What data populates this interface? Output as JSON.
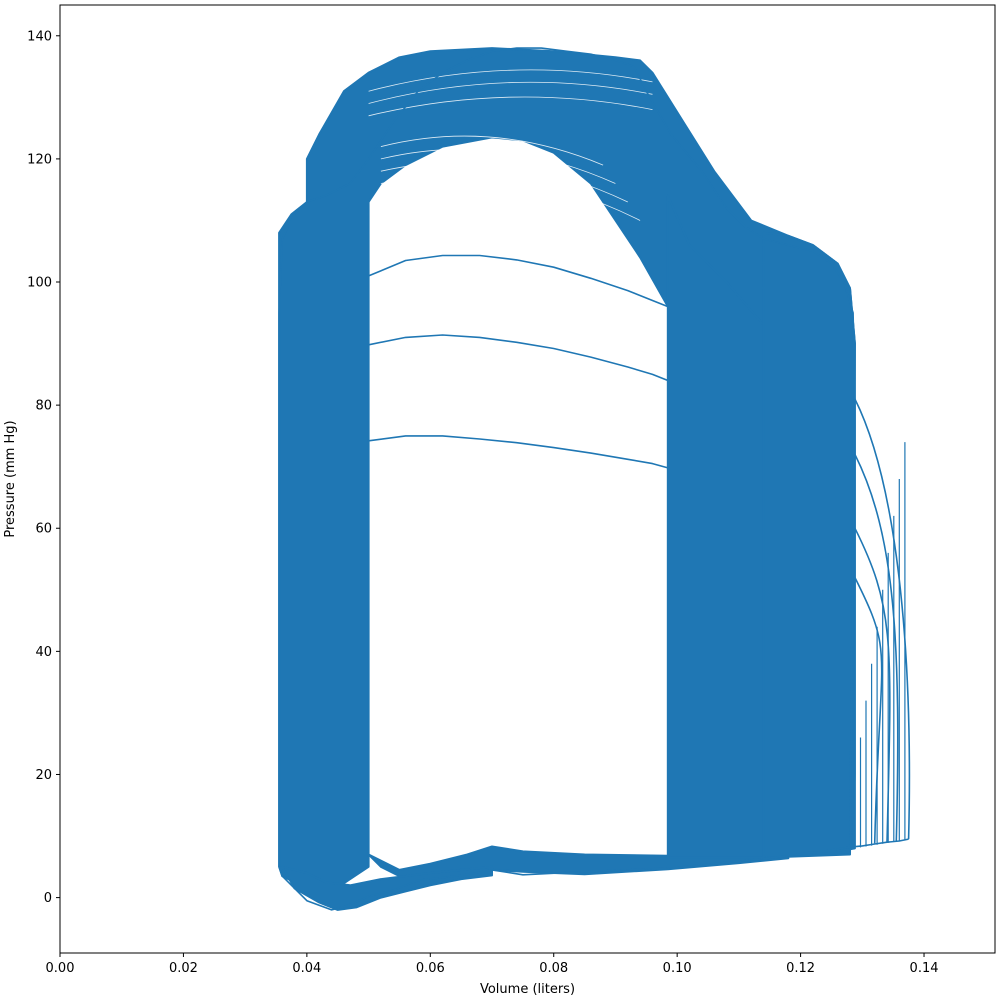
{
  "chart_data": {
    "type": "line",
    "title": "",
    "xlabel": "Volume (liters)",
    "ylabel": "Pressure (mm Hg)",
    "xlim": [
      0.0,
      0.1515
    ],
    "ylim": [
      -9,
      145
    ],
    "x_ticks": [
      0.0,
      0.02,
      0.04,
      0.06,
      0.08,
      0.1,
      0.12,
      0.14
    ],
    "x_tick_labels": [
      "0.00",
      "0.02",
      "0.04",
      "0.06",
      "0.08",
      "0.10",
      "0.12",
      "0.14"
    ],
    "y_ticks": [
      0,
      20,
      40,
      60,
      80,
      100,
      120,
      140
    ],
    "y_tick_labels": [
      "0",
      "20",
      "40",
      "60",
      "80",
      "100",
      "120",
      "140"
    ],
    "grid": false,
    "line_color": "#1f77b4",
    "series": [
      {
        "x": [
          0.1375,
          0.136,
          0.134,
          0.132,
          0.13,
          0.128,
          0.126,
          0.124,
          0.122,
          0.118,
          0.114,
          0.11,
          0.106,
          0.102,
          0.099,
          0.085,
          0.075,
          0.07,
          0.065,
          0.058,
          0.054,
          0.05,
          0.048,
          0.046,
          0.044,
          0.04,
          0.036,
          0.0355,
          0.0355,
          0.0355,
          0.0355,
          0.036,
          0.038,
          0.04,
          0.043,
          0.047,
          0.05,
          0.054,
          0.058,
          0.062,
          0.066,
          0.07,
          0.074,
          0.078,
          0.082,
          0.086,
          0.09,
          0.093,
          0.095,
          0.099,
          0.104,
          0.108,
          0.111,
          0.114,
          0.118,
          0.122,
          0.125,
          0.127,
          0.1285,
          0.1288,
          0.1288,
          0.1288,
          0.1285,
          0.126,
          0.12
        ],
        "y": [
          9.5,
          9.2,
          9.0,
          8.7,
          8.4,
          8.2,
          7.9,
          7.6,
          7.3,
          6.8,
          6.3,
          5.9,
          5.5,
          5.1,
          4.8,
          4.2,
          3.7,
          4.5,
          3.6,
          2.8,
          1.2,
          0.2,
          -0.7,
          -1.5,
          -2.0,
          -0.5,
          3.5,
          5.0,
          30,
          60,
          95,
          107,
          111,
          113,
          114,
          116,
          120,
          126,
          131,
          134,
          136,
          137.5,
          138,
          138,
          137.5,
          137,
          136,
          135,
          131,
          124,
          118,
          112,
          109,
          107,
          106,
          105,
          103,
          100,
          95,
          80,
          50,
          20,
          8.0,
          7.6,
          7.2
        ]
      },
      {
        "x": [
          0.05,
          0.056,
          0.062,
          0.068,
          0.074,
          0.08,
          0.086,
          0.092,
          0.096,
          0.0985
        ],
        "y": [
          74.2,
          75.0,
          75.0,
          74.5,
          73.9,
          73.1,
          72.2,
          71.2,
          70.5,
          69.8
        ]
      },
      {
        "x": [
          0.05,
          0.056,
          0.062,
          0.068,
          0.074,
          0.08,
          0.086,
          0.092,
          0.096,
          0.0985
        ],
        "y": [
          89.8,
          91.0,
          91.4,
          91.0,
          90.2,
          89.2,
          87.8,
          86.2,
          85.0,
          84.0
        ]
      },
      {
        "x": [
          0.05,
          0.056,
          0.062,
          0.068,
          0.074,
          0.08,
          0.086,
          0.092,
          0.096,
          0.0985
        ],
        "y": [
          101.0,
          103.5,
          104.3,
          104.3,
          103.6,
          102.4,
          100.6,
          98.6,
          97.0,
          96.0
        ]
      }
    ]
  }
}
